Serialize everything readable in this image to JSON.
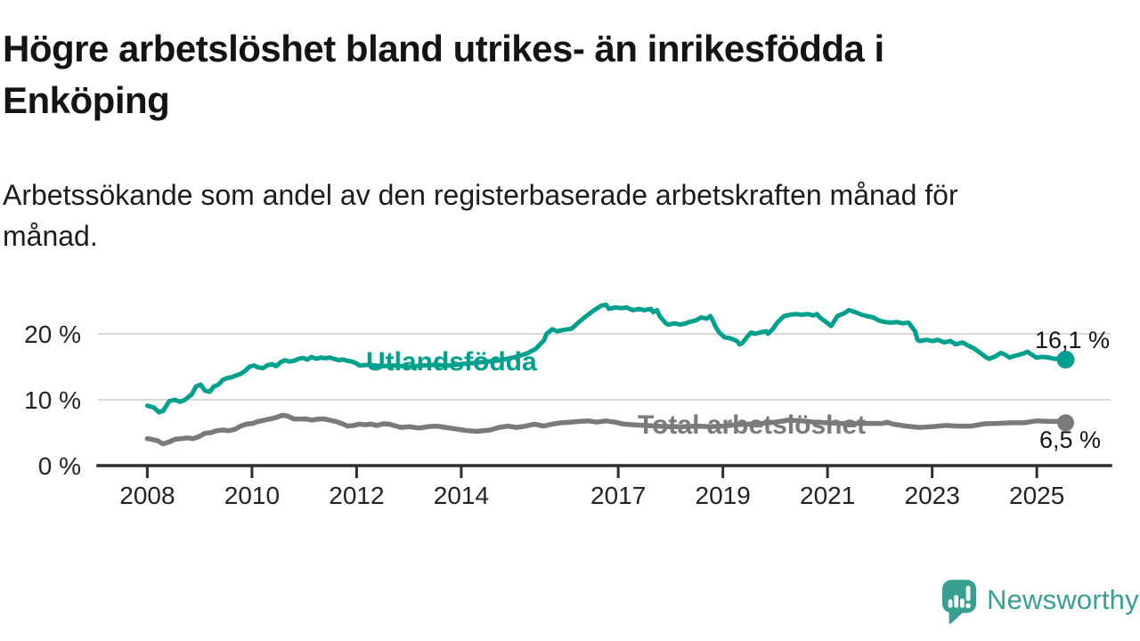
{
  "title": {
    "line1": "Högre arbetslöshet bland utrikes- än inrikesfödda i",
    "line2": "Enköping"
  },
  "subtitle": {
    "line1": "Arbetssökande som andel av den registerbaserade arbetskraften månad för",
    "line2": "månad."
  },
  "footer": {
    "brand": "Newsworthy"
  },
  "colors": {
    "teal": "#00a08e",
    "gray": "#7a7a7a",
    "brand_teal": "#38a093",
    "grid": "#d9d9d9",
    "axis": "#2e2e2e",
    "text": "#141414"
  },
  "chart_data": {
    "type": "line",
    "title": "Högre arbetslöshet bland utrikes- än inrikesfödda i Enköping",
    "subtitle": "Arbetssökande som andel av den registerbaserade arbetskraften månad för månad.",
    "xlabel": "",
    "ylabel": "",
    "unit": "%",
    "grid": "horizontal",
    "legend": "inline-labels",
    "x_axis": {
      "ticks": [
        2008,
        2010,
        2012,
        2014,
        2017,
        2019,
        2021,
        2023,
        2025
      ],
      "tick_labels": [
        "2008",
        "2010",
        "2012",
        "2014",
        "2017",
        "2019",
        "2021",
        "2023",
        "2025"
      ],
      "range": [
        2007.9,
        2025.9
      ]
    },
    "y_axis": {
      "ticks": [
        0,
        10,
        20
      ],
      "tick_labels": [
        "0 %",
        "10 %",
        "20 %"
      ],
      "range": [
        0,
        25.5
      ]
    },
    "series": [
      {
        "name": "Utlandsfödda",
        "color": "#00a08e",
        "end_value": 16.1,
        "end_label": "16,1 %",
        "points": [
          [
            2008.0,
            9.1
          ],
          [
            2008.13,
            8.8
          ],
          [
            2008.22,
            8.1
          ],
          [
            2008.3,
            8.3
          ],
          [
            2008.42,
            9.8
          ],
          [
            2008.53,
            10.0
          ],
          [
            2008.62,
            9.7
          ],
          [
            2008.7,
            9.9
          ],
          [
            2008.85,
            10.8
          ],
          [
            2008.93,
            12.0
          ],
          [
            2009.02,
            12.3
          ],
          [
            2009.1,
            11.4
          ],
          [
            2009.19,
            11.2
          ],
          [
            2009.27,
            12.0
          ],
          [
            2009.36,
            12.3
          ],
          [
            2009.44,
            13.0
          ],
          [
            2009.53,
            13.3
          ],
          [
            2009.61,
            13.4
          ],
          [
            2009.7,
            13.7
          ],
          [
            2009.78,
            13.9
          ],
          [
            2009.87,
            14.4
          ],
          [
            2009.95,
            15.0
          ],
          [
            2010.04,
            15.2
          ],
          [
            2010.12,
            14.9
          ],
          [
            2010.21,
            14.8
          ],
          [
            2010.29,
            15.2
          ],
          [
            2010.38,
            15.4
          ],
          [
            2010.46,
            15.1
          ],
          [
            2010.55,
            15.7
          ],
          [
            2010.63,
            16.0
          ],
          [
            2010.72,
            15.8
          ],
          [
            2010.8,
            15.9
          ],
          [
            2010.89,
            16.2
          ],
          [
            2010.97,
            16.35
          ],
          [
            2011.06,
            16.1
          ],
          [
            2011.14,
            16.5
          ],
          [
            2011.23,
            16.2
          ],
          [
            2011.31,
            16.4
          ],
          [
            2011.4,
            16.3
          ],
          [
            2011.49,
            16.4
          ],
          [
            2011.57,
            16.2
          ],
          [
            2011.66,
            16.0
          ],
          [
            2011.74,
            16.1
          ],
          [
            2011.83,
            15.9
          ],
          [
            2011.91,
            15.8
          ],
          [
            2012.0,
            15.5
          ],
          [
            2012.05,
            15.2
          ],
          [
            2012.25,
            15.3
          ],
          [
            2012.5,
            15.1
          ],
          [
            2012.75,
            15.2
          ],
          [
            2013.0,
            15.0
          ],
          [
            2013.25,
            15.2
          ],
          [
            2013.5,
            15.3
          ],
          [
            2013.75,
            15.2
          ],
          [
            2014.0,
            15.4
          ],
          [
            2014.25,
            15.6
          ],
          [
            2014.5,
            15.8
          ],
          [
            2014.75,
            16.0
          ],
          [
            2015.0,
            16.4
          ],
          [
            2015.25,
            17.0
          ],
          [
            2015.42,
            17.7
          ],
          [
            2015.58,
            19.0
          ],
          [
            2015.63,
            20.0
          ],
          [
            2015.74,
            20.7
          ],
          [
            2015.83,
            20.4
          ],
          [
            2015.96,
            20.6
          ],
          [
            2016.11,
            20.8
          ],
          [
            2016.25,
            21.8
          ],
          [
            2016.39,
            22.7
          ],
          [
            2016.54,
            23.6
          ],
          [
            2016.68,
            24.3
          ],
          [
            2016.77,
            24.4
          ],
          [
            2016.82,
            23.8
          ],
          [
            2016.94,
            24.0
          ],
          [
            2017.06,
            23.9
          ],
          [
            2017.16,
            24.0
          ],
          [
            2017.28,
            23.6
          ],
          [
            2017.4,
            23.8
          ],
          [
            2017.5,
            23.6
          ],
          [
            2017.62,
            23.8
          ],
          [
            2017.67,
            23.3
          ],
          [
            2017.74,
            23.6
          ],
          [
            2017.79,
            22.7
          ],
          [
            2017.91,
            21.6
          ],
          [
            2017.96,
            21.4
          ],
          [
            2018.08,
            21.6
          ],
          [
            2018.18,
            21.4
          ],
          [
            2018.3,
            21.6
          ],
          [
            2018.35,
            21.8
          ],
          [
            2018.47,
            22.0
          ],
          [
            2018.59,
            22.5
          ],
          [
            2018.69,
            22.3
          ],
          [
            2018.76,
            22.7
          ],
          [
            2018.81,
            22.0
          ],
          [
            2018.86,
            21.1
          ],
          [
            2018.93,
            20.2
          ],
          [
            2019.03,
            19.5
          ],
          [
            2019.15,
            19.3
          ],
          [
            2019.27,
            18.9
          ],
          [
            2019.32,
            18.4
          ],
          [
            2019.37,
            18.6
          ],
          [
            2019.49,
            19.8
          ],
          [
            2019.54,
            20.2
          ],
          [
            2019.61,
            20.0
          ],
          [
            2019.71,
            20.2
          ],
          [
            2019.83,
            20.4
          ],
          [
            2019.86,
            20.0
          ],
          [
            2019.95,
            20.7
          ],
          [
            2020.05,
            21.8
          ],
          [
            2020.17,
            22.7
          ],
          [
            2020.29,
            22.9
          ],
          [
            2020.39,
            23.0
          ],
          [
            2020.51,
            22.9
          ],
          [
            2020.63,
            23.0
          ],
          [
            2020.73,
            22.8
          ],
          [
            2020.8,
            23.0
          ],
          [
            2020.85,
            22.5
          ],
          [
            2020.97,
            21.8
          ],
          [
            2021.07,
            21.2
          ],
          [
            2021.19,
            22.7
          ],
          [
            2021.31,
            23.1
          ],
          [
            2021.41,
            23.6
          ],
          [
            2021.53,
            23.3
          ],
          [
            2021.65,
            22.9
          ],
          [
            2021.75,
            22.7
          ],
          [
            2021.87,
            22.5
          ],
          [
            2021.99,
            22.0
          ],
          [
            2022.09,
            21.8
          ],
          [
            2022.21,
            21.7
          ],
          [
            2022.33,
            21.8
          ],
          [
            2022.43,
            21.6
          ],
          [
            2022.55,
            21.7
          ],
          [
            2022.67,
            20.4
          ],
          [
            2022.72,
            19.1
          ],
          [
            2022.77,
            18.9
          ],
          [
            2022.89,
            19.1
          ],
          [
            2023.01,
            18.9
          ],
          [
            2023.11,
            19.1
          ],
          [
            2023.23,
            18.7
          ],
          [
            2023.35,
            18.9
          ],
          [
            2023.45,
            18.4
          ],
          [
            2023.58,
            18.7
          ],
          [
            2023.69,
            18.2
          ],
          [
            2023.8,
            17.8
          ],
          [
            2023.92,
            17.1
          ],
          [
            2024.04,
            16.4
          ],
          [
            2024.09,
            16.2
          ],
          [
            2024.21,
            16.6
          ],
          [
            2024.31,
            17.1
          ],
          [
            2024.38,
            16.9
          ],
          [
            2024.48,
            16.4
          ],
          [
            2024.55,
            16.6
          ],
          [
            2024.65,
            16.8
          ],
          [
            2024.77,
            17.1
          ],
          [
            2024.82,
            17.3
          ],
          [
            2024.89,
            16.9
          ],
          [
            2024.99,
            16.4
          ],
          [
            2025.11,
            16.5
          ],
          [
            2025.23,
            16.4
          ],
          [
            2025.33,
            16.2
          ],
          [
            2025.45,
            16.25
          ],
          [
            2025.55,
            16.1
          ]
        ]
      },
      {
        "name": "Total arbetslöshet",
        "color": "#7a7a7a",
        "end_value": 6.5,
        "end_label": "6,5 %",
        "points": [
          [
            2008.0,
            4.1
          ],
          [
            2008.08,
            4.0
          ],
          [
            2008.19,
            3.8
          ],
          [
            2008.3,
            3.3
          ],
          [
            2008.42,
            3.6
          ],
          [
            2008.53,
            4.0
          ],
          [
            2008.65,
            4.1
          ],
          [
            2008.76,
            4.2
          ],
          [
            2008.87,
            4.1
          ],
          [
            2008.99,
            4.4
          ],
          [
            2009.1,
            4.9
          ],
          [
            2009.21,
            5.0
          ],
          [
            2009.33,
            5.3
          ],
          [
            2009.44,
            5.4
          ],
          [
            2009.56,
            5.3
          ],
          [
            2009.67,
            5.5
          ],
          [
            2009.78,
            6.0
          ],
          [
            2009.9,
            6.3
          ],
          [
            2010.01,
            6.4
          ],
          [
            2010.12,
            6.7
          ],
          [
            2010.24,
            6.9
          ],
          [
            2010.35,
            7.1
          ],
          [
            2010.46,
            7.3
          ],
          [
            2010.58,
            7.65
          ],
          [
            2010.69,
            7.5
          ],
          [
            2010.8,
            7.1
          ],
          [
            2010.92,
            7.05
          ],
          [
            2011.03,
            7.1
          ],
          [
            2011.14,
            6.9
          ],
          [
            2011.26,
            7.05
          ],
          [
            2011.37,
            7.1
          ],
          [
            2011.49,
            6.9
          ],
          [
            2011.6,
            6.7
          ],
          [
            2011.71,
            6.4
          ],
          [
            2011.83,
            6.0
          ],
          [
            2011.94,
            6.1
          ],
          [
            2012.05,
            6.3
          ],
          [
            2012.17,
            6.2
          ],
          [
            2012.28,
            6.3
          ],
          [
            2012.39,
            6.1
          ],
          [
            2012.51,
            6.35
          ],
          [
            2012.62,
            6.3
          ],
          [
            2012.85,
            5.8
          ],
          [
            2013.02,
            5.9
          ],
          [
            2013.19,
            5.7
          ],
          [
            2013.36,
            5.9
          ],
          [
            2013.53,
            6.0
          ],
          [
            2013.7,
            5.8
          ],
          [
            2013.87,
            5.6
          ],
          [
            2014.13,
            5.3
          ],
          [
            2014.3,
            5.2
          ],
          [
            2014.55,
            5.4
          ],
          [
            2014.72,
            5.8
          ],
          [
            2014.89,
            6.0
          ],
          [
            2015.06,
            5.8
          ],
          [
            2015.23,
            6.0
          ],
          [
            2015.4,
            6.3
          ],
          [
            2015.57,
            6.0
          ],
          [
            2015.74,
            6.3
          ],
          [
            2015.91,
            6.5
          ],
          [
            2016.08,
            6.6
          ],
          [
            2016.25,
            6.7
          ],
          [
            2016.42,
            6.8
          ],
          [
            2016.59,
            6.6
          ],
          [
            2016.77,
            6.8
          ],
          [
            2016.94,
            6.6
          ],
          [
            2017.11,
            6.3
          ],
          [
            2017.28,
            6.2
          ],
          [
            2017.5,
            6.1
          ],
          [
            2017.75,
            6.0
          ],
          [
            2018.0,
            5.9
          ],
          [
            2018.25,
            5.9
          ],
          [
            2018.5,
            6.0
          ],
          [
            2018.75,
            5.9
          ],
          [
            2019.0,
            6.0
          ],
          [
            2019.25,
            6.2
          ],
          [
            2019.5,
            6.3
          ],
          [
            2019.75,
            6.4
          ],
          [
            2020.0,
            6.6
          ],
          [
            2020.25,
            6.9
          ],
          [
            2020.5,
            6.8
          ],
          [
            2020.75,
            6.6
          ],
          [
            2021.0,
            6.5
          ],
          [
            2021.25,
            6.4
          ],
          [
            2021.5,
            6.4
          ],
          [
            2021.75,
            6.4
          ],
          [
            2021.96,
            6.4
          ],
          [
            2022.05,
            6.4
          ],
          [
            2022.14,
            6.6
          ],
          [
            2022.25,
            6.3
          ],
          [
            2022.5,
            6.0
          ],
          [
            2022.75,
            5.8
          ],
          [
            2023.0,
            5.9
          ],
          [
            2023.25,
            6.1
          ],
          [
            2023.5,
            6.0
          ],
          [
            2023.75,
            6.0
          ],
          [
            2024.0,
            6.35
          ],
          [
            2024.25,
            6.4
          ],
          [
            2024.5,
            6.5
          ],
          [
            2024.75,
            6.5
          ],
          [
            2025.0,
            6.8
          ],
          [
            2025.25,
            6.7
          ],
          [
            2025.4,
            6.75
          ],
          [
            2025.55,
            6.5
          ]
        ]
      }
    ]
  }
}
